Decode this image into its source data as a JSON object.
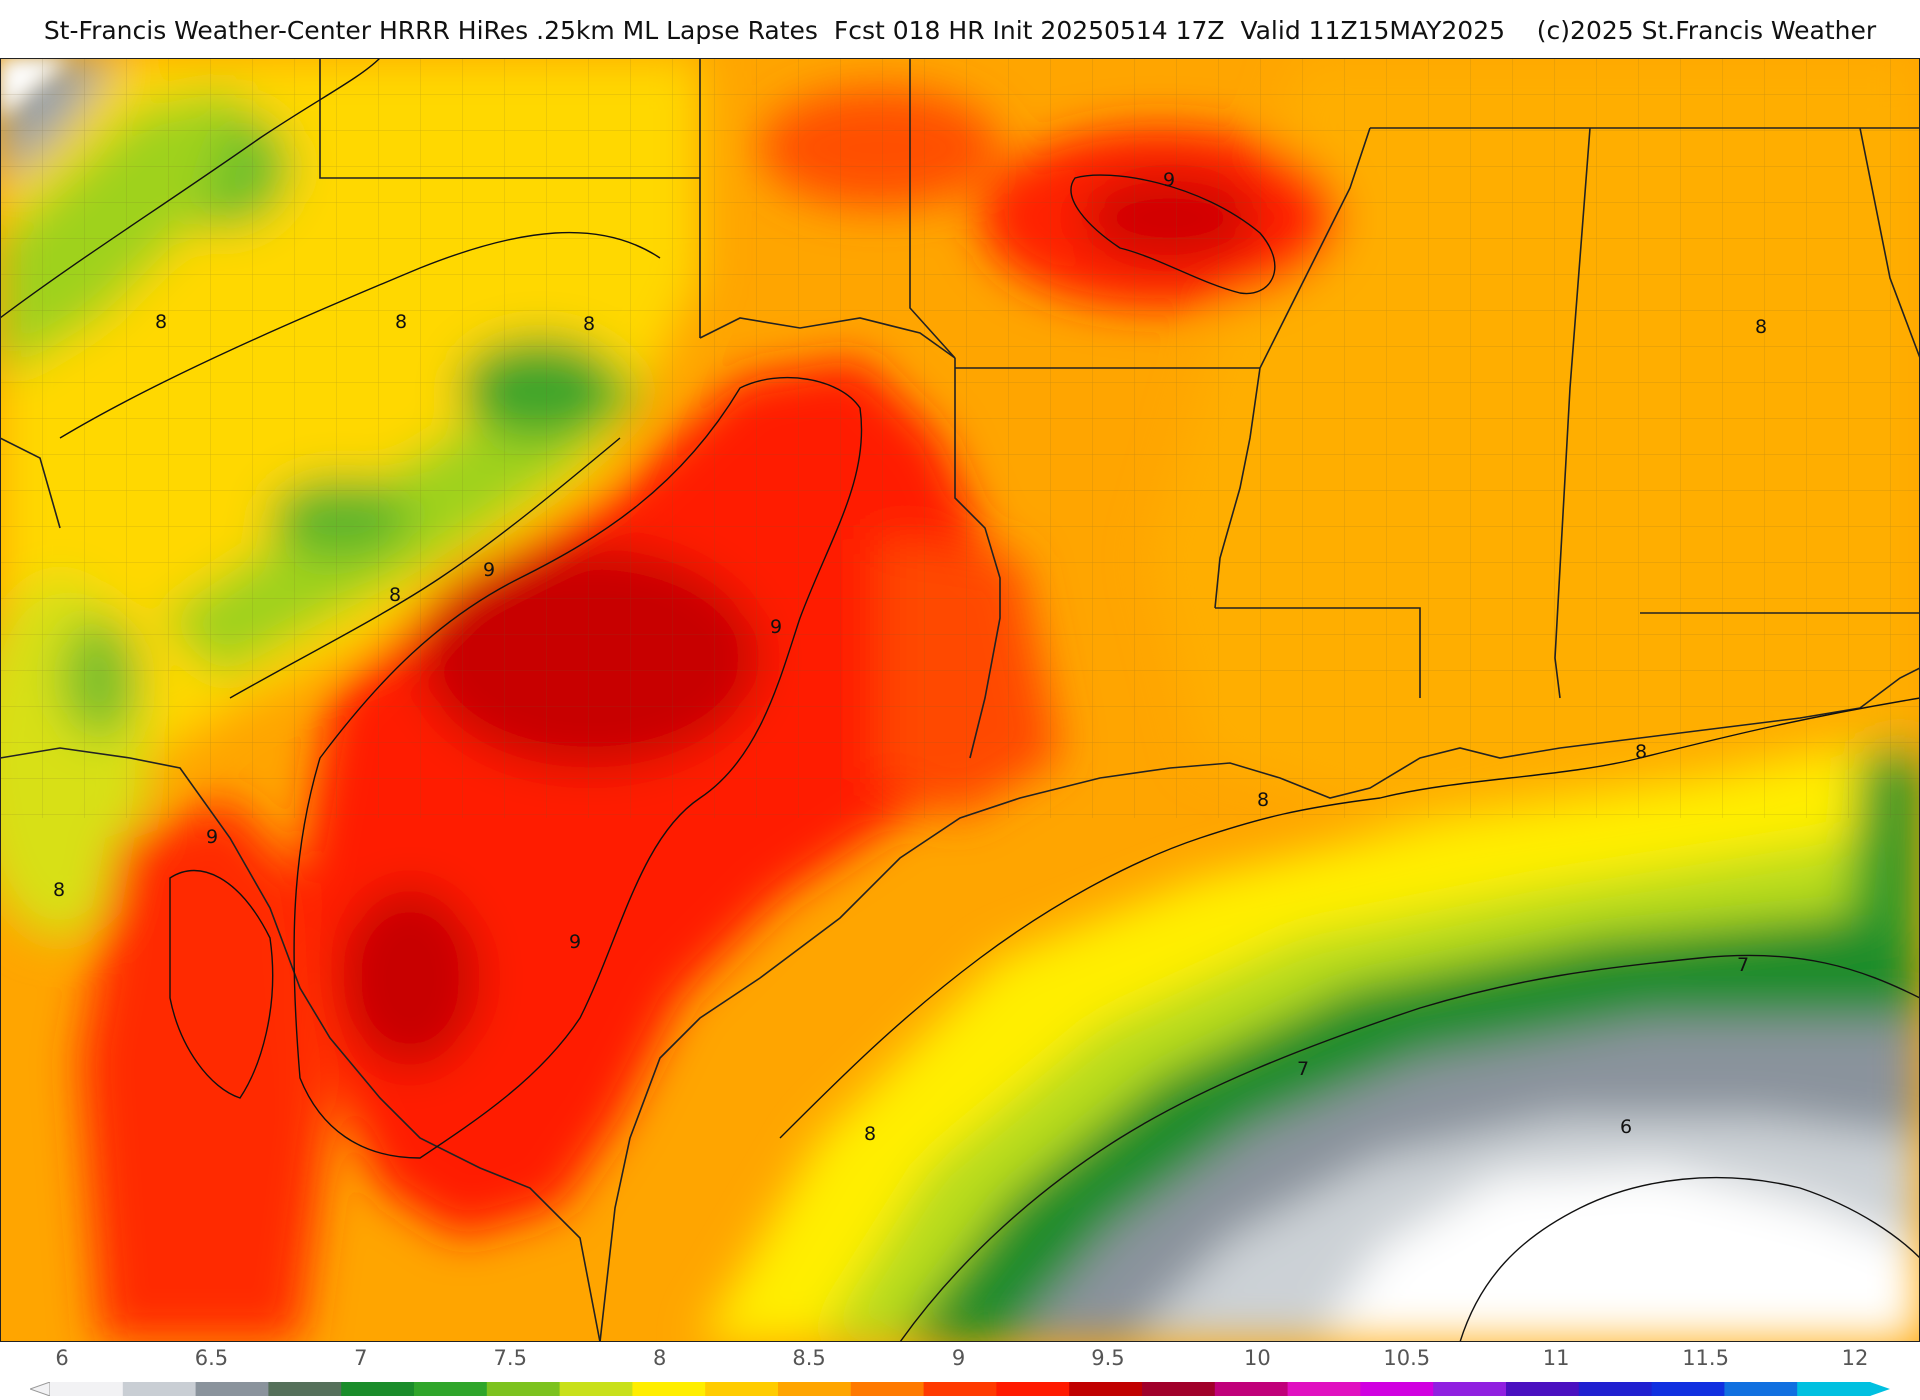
{
  "header": {
    "title": "St-Francis Weather-Center HRRR HiRes .25km ML Lapse Rates  Fcst 018 HR Init 20250514 17Z  Valid 11Z15MAY2025    (c)2025 St.Francis Weather"
  },
  "colors": {
    "background_white": "#ffffff",
    "lapse_6": "#d9dde2",
    "lapse_6_5": "#8a939c",
    "lapse_7": "#1a8c2a",
    "lapse_7_5": "#a8d41e",
    "lapse_8": "#ffee00",
    "lapse_8_5": "#ffa500",
    "lapse_9": "#ff1a00",
    "lapse_9_5": "#b80000",
    "lapse_10": "#c0007a",
    "lapse_10_5": "#d000e0",
    "lapse_11": "#4a10c0",
    "lapse_11_5": "#1030e0",
    "lapse_12": "#00c0e0",
    "boundary_line": "#222222",
    "county_line": "#7a6a40"
  },
  "contour_labels": [
    {
      "label": "9",
      "id": "ar-9"
    },
    {
      "label": "8",
      "id": "ok-8a"
    },
    {
      "label": "8",
      "id": "ok-8b"
    },
    {
      "label": "8",
      "id": "ok-8c"
    },
    {
      "label": "9",
      "id": "tx-9a"
    },
    {
      "label": "8",
      "id": "tx-8a"
    },
    {
      "label": "9",
      "id": "tx-9b"
    },
    {
      "label": "9",
      "id": "mx-9"
    },
    {
      "label": "8",
      "id": "mx-8"
    },
    {
      "label": "9",
      "id": "tx-9c"
    },
    {
      "label": "8",
      "id": "al-8"
    },
    {
      "label": "8",
      "id": "gulf-8a"
    },
    {
      "label": "8",
      "id": "gulf-8b"
    },
    {
      "label": "8",
      "id": "gulf-8c"
    },
    {
      "label": "7",
      "id": "gulf-7a"
    },
    {
      "label": "7",
      "id": "gulf-7b"
    },
    {
      "label": "6",
      "id": "gulf-6"
    }
  ],
  "legend": {
    "ticks": [
      "6",
      "6.5",
      "7",
      "7.5",
      "8",
      "8.5",
      "9",
      "9.5",
      "10",
      "10.5",
      "11",
      "11.5",
      "12"
    ],
    "color_stops": [
      "#f2f2f4",
      "#c9ced4",
      "#8a939c",
      "#55705a",
      "#1a8c2a",
      "#2fa52a",
      "#7cc21f",
      "#c8e01a",
      "#ffee00",
      "#ffcc00",
      "#ffa500",
      "#ff7a00",
      "#ff3a00",
      "#ff1a00",
      "#c00000",
      "#a0002a",
      "#c0007a",
      "#e010c0",
      "#d000e0",
      "#9020e0",
      "#4a10c0",
      "#2020d0",
      "#1030e0",
      "#1070e0",
      "#00c0e0"
    ]
  }
}
